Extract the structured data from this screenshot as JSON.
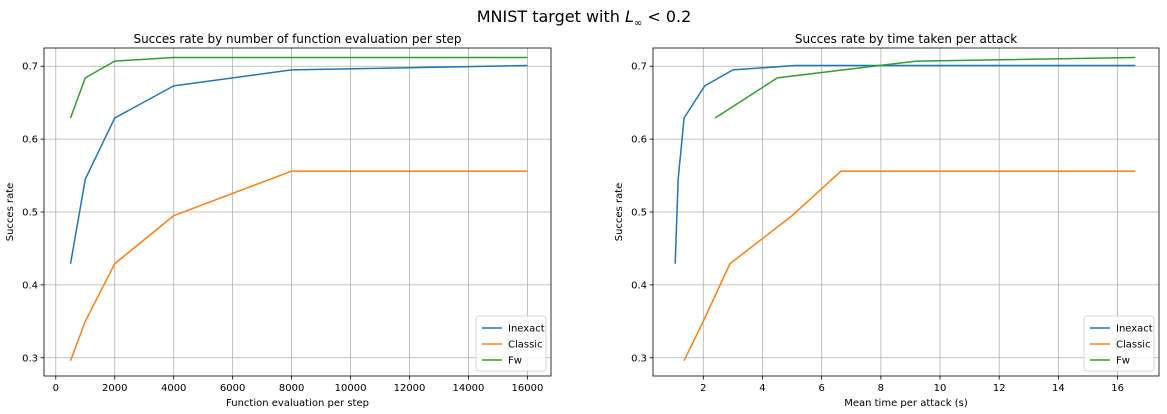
{
  "figure": {
    "suptitle_pre": "MNIST target with ",
    "suptitle_var": "L",
    "suptitle_sub": "∞",
    "suptitle_post": " < 0.2"
  },
  "colors": {
    "Inexact": "#1f77b4",
    "Classic": "#ff7f0e",
    "Fw": "#2ca02c"
  },
  "chart_data": [
    {
      "type": "line",
      "title": "Succes rate by number of function evaluation per step",
      "xlabel": "Function evaluation per step",
      "ylabel": "Succes rate",
      "xlim": [
        -400,
        16800
      ],
      "ylim": [
        0.275,
        0.725
      ],
      "xticks": [
        0,
        2000,
        4000,
        6000,
        8000,
        10000,
        12000,
        14000,
        16000
      ],
      "yticks": [
        0.3,
        0.4,
        0.5,
        0.6,
        0.7
      ],
      "grid": true,
      "legend": "lower right",
      "series": [
        {
          "name": "Inexact",
          "x": [
            500,
            1000,
            2000,
            4000,
            8000,
            16000
          ],
          "y": [
            0.429,
            0.545,
            0.629,
            0.673,
            0.695,
            0.701
          ]
        },
        {
          "name": "Classic",
          "x": [
            500,
            1000,
            2000,
            4000,
            8000,
            16000
          ],
          "y": [
            0.296,
            0.35,
            0.429,
            0.495,
            0.556,
            0.556
          ]
        },
        {
          "name": "Fw",
          "x": [
            500,
            1000,
            2000,
            4000,
            8000,
            16000
          ],
          "y": [
            0.629,
            0.684,
            0.707,
            0.712,
            0.712,
            0.712
          ]
        }
      ]
    },
    {
      "type": "line",
      "title": "Succes rate by time taken per attack",
      "xlabel": "Mean time per attack (s)",
      "ylabel": "Succes rate",
      "xlim": [
        0.3,
        17.4
      ],
      "ylim": [
        0.275,
        0.725
      ],
      "xticks": [
        2,
        4,
        6,
        8,
        10,
        12,
        14,
        16
      ],
      "yticks": [
        0.3,
        0.4,
        0.5,
        0.6,
        0.7
      ],
      "grid": true,
      "legend": "lower right",
      "series": [
        {
          "name": "Inexact",
          "x": [
            1.05,
            1.15,
            1.35,
            2.05,
            3.0,
            5.1,
            8.5,
            16.6
          ],
          "y": [
            0.429,
            0.545,
            0.629,
            0.673,
            0.695,
            0.701,
            0.701,
            0.701
          ]
        },
        {
          "name": "Classic",
          "x": [
            1.35,
            2.0,
            2.9,
            5.0,
            6.65,
            16.6
          ],
          "y": [
            0.296,
            0.35,
            0.429,
            0.495,
            0.556,
            0.556
          ]
        },
        {
          "name": "Fw",
          "x": [
            2.4,
            4.5,
            9.2,
            16.6
          ],
          "y": [
            0.629,
            0.684,
            0.707,
            0.712
          ]
        }
      ]
    }
  ]
}
